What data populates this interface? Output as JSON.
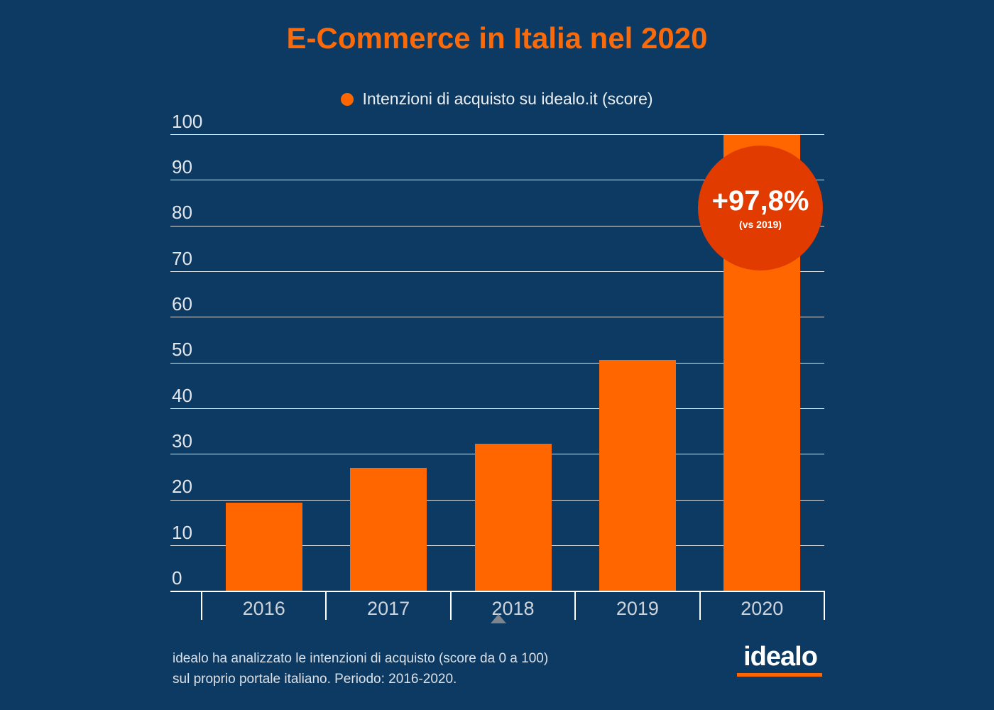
{
  "title": "E-Commerce in Italia nel 2020",
  "legend": {
    "label": "Intenzioni di acquisto su idealo.it (score)",
    "dot_color": "#ff6600"
  },
  "badge": {
    "value": "+97,8%",
    "subtext": "(vs 2019)",
    "color": "#e13b00"
  },
  "footer": {
    "line1": "idealo ha analizzato le intenzioni di acquisto (score da 0 a 100)",
    "line2": "sul proprio portale italiano. Periodo: 2016-2020."
  },
  "logo": {
    "text": "idealo",
    "underline_color": "#ff6600"
  },
  "colors": {
    "background": "#0d3a62",
    "title": "#fa690a",
    "bar": "#ff6600",
    "gridline": "#ffffff",
    "axis": "#ffffff",
    "ytick_label": "#e3e7ec",
    "xcat_label": "#ccd3da",
    "marker_triangle": "#7e848c"
  },
  "chart_data": {
    "type": "bar",
    "title": "E-Commerce in Italia nel 2020",
    "categories": [
      "2016",
      "2017",
      "2018",
      "2019",
      "2020"
    ],
    "values": [
      19.4,
      27,
      32.4,
      50.6,
      100
    ],
    "series_name": "Intenzioni di acquisto su idealo.it (score)",
    "xlabel": "",
    "ylabel": "",
    "ylim": [
      0,
      100
    ],
    "yticks": [
      0,
      10,
      20,
      30,
      40,
      50,
      60,
      70,
      80,
      90,
      100
    ],
    "grid": true,
    "legend_position": "top-center",
    "bar_color": "#ff6600",
    "annotation": {
      "text": "+97,8%",
      "subtext": "(vs 2019)",
      "attached_to_category": "2020"
    },
    "marker": {
      "shape": "triangle-up",
      "under_category": "2018"
    }
  }
}
